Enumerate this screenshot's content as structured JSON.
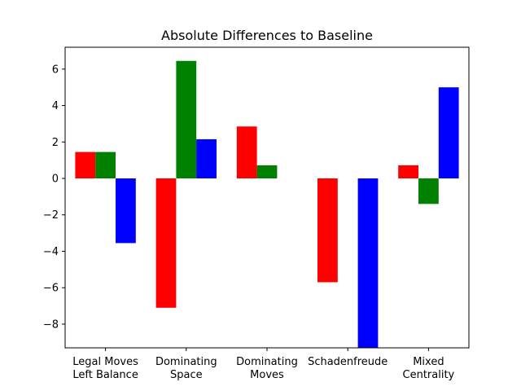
{
  "chart_data": {
    "type": "bar",
    "title": "Absolute Differences to Baseline",
    "xlabel": "",
    "ylabel": "",
    "categories": [
      [
        "Legal Moves",
        "Left Balance"
      ],
      [
        "Dominating",
        "Space"
      ],
      [
        "Dominating",
        "Moves"
      ],
      [
        "Schadenfreude"
      ],
      [
        "Mixed",
        "Centrality"
      ]
    ],
    "series": [
      {
        "color": "#ff0000",
        "values": [
          1.45,
          -7.1,
          2.85,
          -5.7,
          0.72
        ]
      },
      {
        "color": "#008000",
        "values": [
          1.45,
          6.45,
          0.72,
          0.0,
          -1.4
        ]
      },
      {
        "color": "#0000ff",
        "values": [
          -3.55,
          2.15,
          0.0,
          -9.3,
          5.0
        ]
      }
    ],
    "ylim": [
      -9.3,
      7.2
    ],
    "yticks": [
      -8,
      -6,
      -4,
      -2,
      0,
      2,
      4,
      6
    ],
    "grid": false,
    "legend": "none"
  }
}
